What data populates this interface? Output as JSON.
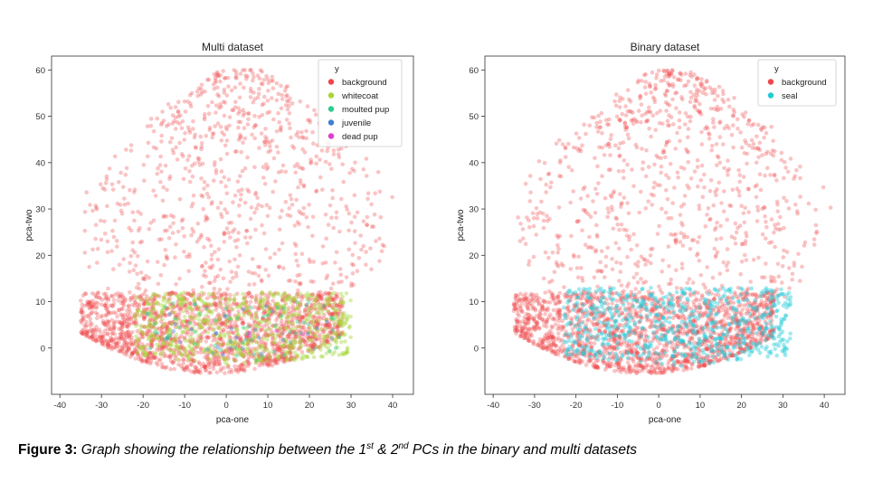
{
  "chart_data": [
    {
      "type": "scatter",
      "title": "Multi dataset",
      "xlabel": "pca-one",
      "ylabel": "pca-two",
      "xlim": [
        -42,
        45
      ],
      "ylim": [
        -10,
        63
      ],
      "xticks": [
        -40,
        -30,
        -20,
        -10,
        0,
        10,
        20,
        30,
        40
      ],
      "yticks": [
        0,
        10,
        20,
        30,
        40,
        50,
        60
      ],
      "grid": false,
      "legend": {
        "title": "y",
        "placement": "top-right"
      },
      "series": [
        {
          "name": "background",
          "color": "#f0464b",
          "n": 2600,
          "distribution": "blob of points spanning x -35..42, y -6..60; dense crescent near bottom (y -6..12), sparse upper dome"
        },
        {
          "name": "whitecoat",
          "color": "#a8d63a",
          "n": 650,
          "distribution": "x -22..30, y -4..12"
        },
        {
          "name": "moulted pup",
          "color": "#2ecc8f",
          "n": 70,
          "distribution": "x -20..28, y -3..10"
        },
        {
          "name": "juvenile",
          "color": "#3f7fd6",
          "n": 25,
          "distribution": "x -18..25, y -2..9"
        },
        {
          "name": "dead pup",
          "color": "#d93fd1",
          "n": 8,
          "distribution": "x -15..20, y -1..8"
        }
      ]
    },
    {
      "type": "scatter",
      "title": "Binary dataset",
      "xlabel": "pca-one",
      "ylabel": "pca-two",
      "xlim": [
        -42,
        45
      ],
      "ylim": [
        -10,
        63
      ],
      "xticks": [
        -40,
        -30,
        -20,
        -10,
        0,
        10,
        20,
        30,
        40
      ],
      "yticks": [
        0,
        10,
        20,
        30,
        40,
        50,
        60
      ],
      "grid": false,
      "legend": {
        "title": "y",
        "placement": "top-right"
      },
      "series": [
        {
          "name": "background",
          "color": "#f0464b",
          "n": 2600,
          "distribution": "same as multi dataset background"
        },
        {
          "name": "seal",
          "color": "#22cbd8",
          "n": 700,
          "distribution": "x -23..32, y -4..13"
        }
      ]
    }
  ],
  "caption": {
    "label": "Figure 3:",
    "text_1": "Graph showing the relationship between the 1",
    "sup_1": "st",
    "text_2": " & 2",
    "sup_2": "nd",
    "text_3": " PCs in the binary and multi datasets"
  }
}
